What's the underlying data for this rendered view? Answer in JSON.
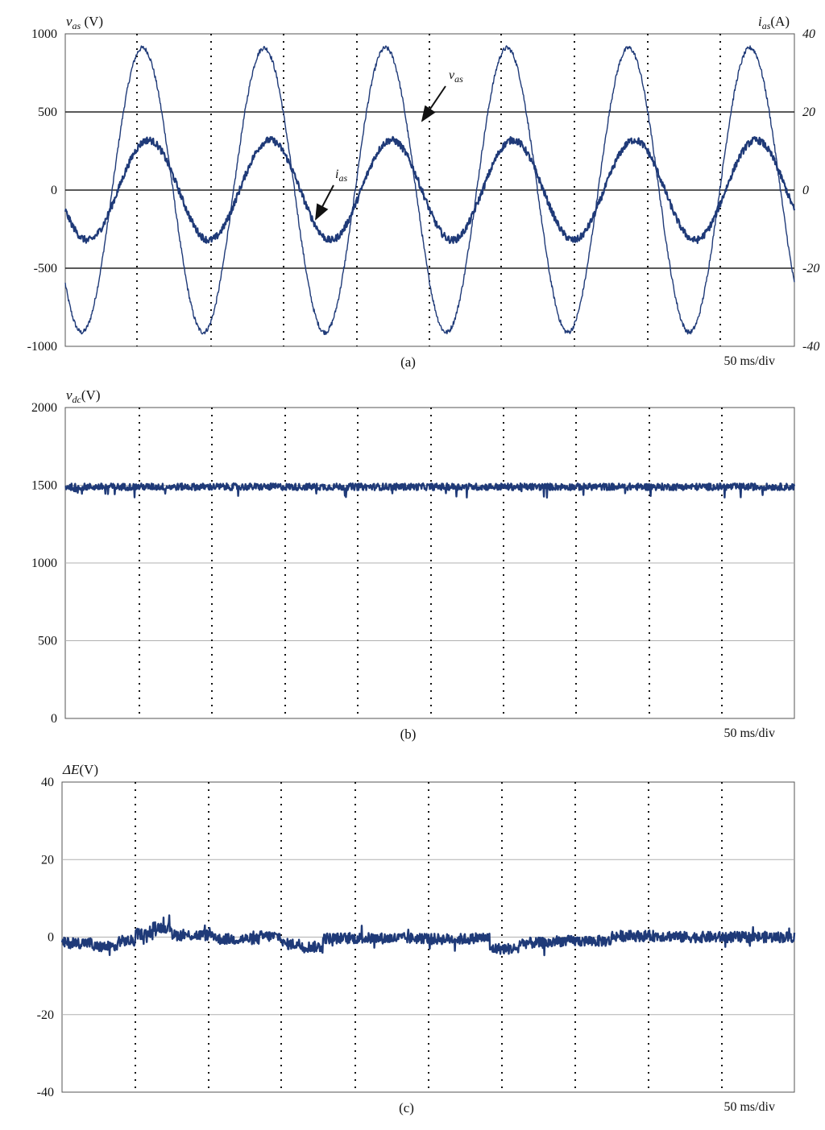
{
  "chart_data": [
    {
      "type": "line",
      "caption": "(a)",
      "time_scale": "50 ms/div",
      "xlim": [
        0,
        500
      ],
      "left_axis": {
        "label_symbol": "v",
        "label_sub": "as",
        "label_unit": " (V)",
        "ylim": [
          -1000,
          1000
        ],
        "ticks": [
          "1000",
          "500",
          "0",
          "-500",
          "-1000"
        ]
      },
      "right_axis": {
        "label_symbol": "i",
        "label_sub": "as",
        "label_unit": "(A)",
        "ylim": [
          -40,
          40
        ],
        "ticks": [
          "40",
          "20",
          "0",
          "-20",
          "-40"
        ]
      },
      "series": [
        {
          "name_symbol": "v",
          "name_sub": "as",
          "axis": "left",
          "waveform": "sine",
          "amplitude": 910,
          "frequency_hz": 12,
          "peak_time_ms": 53,
          "ripple": 15,
          "color": "#1f3a78"
        },
        {
          "name_symbol": "i",
          "name_sub": "as",
          "axis": "right",
          "waveform": "sine",
          "amplitude": 12.8,
          "frequency_hz": 12,
          "peak_time_ms": 57,
          "ripple": 0.9,
          "color": "#1f3a78"
        }
      ]
    },
    {
      "type": "line",
      "caption": "(b)",
      "time_scale": "50 ms/div",
      "xlim": [
        0,
        500
      ],
      "left_axis": {
        "label_symbol": "v",
        "label_sub": "dc",
        "label_unit": "(V)",
        "ylim": [
          0,
          2000
        ],
        "ticks": [
          "2000",
          "1500",
          "1000",
          "500",
          "0"
        ]
      },
      "series": [
        {
          "name_symbol": "v",
          "name_sub": "dc",
          "axis": "left",
          "waveform": "dc",
          "level": 1490,
          "ripple": 22,
          "color": "#1f3a78"
        }
      ]
    },
    {
      "type": "line",
      "caption": "(c)",
      "time_scale": "50 ms/div",
      "xlim": [
        0,
        500
      ],
      "left_axis": {
        "label_symbol": "ΔE",
        "label_sub": "",
        "label_unit": "(V)",
        "ylim": [
          -40,
          40
        ],
        "ticks": [
          "40",
          "20",
          "0",
          "-20",
          "-40"
        ]
      },
      "series": [
        {
          "name_symbol": "ΔE",
          "name_sub": "",
          "axis": "left",
          "waveform": "piecewise",
          "ripple": 1.4,
          "color": "#1f3a78",
          "segments": [
            [
              0,
              20,
              -1.5
            ],
            [
              20,
              38,
              -2.5
            ],
            [
              38,
              50,
              -1.0
            ],
            [
              50,
              62,
              0.8
            ],
            [
              62,
              75,
              2.5
            ],
            [
              75,
              105,
              0.5
            ],
            [
              105,
              135,
              -0.5
            ],
            [
              135,
              150,
              0.2
            ],
            [
              150,
              163,
              -1.8
            ],
            [
              163,
              178,
              -2.5
            ],
            [
              178,
              250,
              -0.3
            ],
            [
              250,
              280,
              -0.5
            ],
            [
              280,
              292,
              -0.2
            ],
            [
              292,
              312,
              -3.0
            ],
            [
              312,
              335,
              -1.5
            ],
            [
              335,
              375,
              -1.0
            ],
            [
              375,
              420,
              0.3
            ],
            [
              420,
              500,
              0.0
            ]
          ]
        }
      ]
    }
  ],
  "annotations": [
    {
      "panel": 0,
      "symbol": "v",
      "sub": "as"
    },
    {
      "panel": 0,
      "symbol": "i",
      "sub": "as"
    }
  ]
}
